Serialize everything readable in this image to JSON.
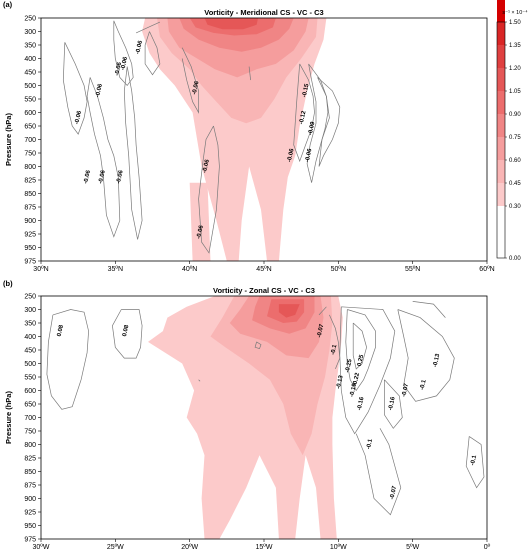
{
  "chart_data": [
    {
      "type": "heatmap",
      "panel_label": "(a)",
      "title": "Vorticity - Meridional CS - VC - C3",
      "ylabel": "Pressure (hPa)",
      "xlabel": "",
      "x_ticks": [
        "30ºN",
        "35ºN",
        "40ºN",
        "45ºN",
        "50ºN",
        "55ºN",
        "60ºN"
      ],
      "xlim": [
        30,
        60
      ],
      "y_ticks": [
        "250",
        "300",
        "350",
        "400",
        "450",
        "500",
        "550",
        "600",
        "650",
        "700",
        "750",
        "800",
        "825",
        "850",
        "875",
        "900",
        "925",
        "950",
        "975"
      ],
      "ylim": [
        975,
        250
      ],
      "contour_labels": [
        {
          "text": "-0.06",
          "x": 36.7,
          "y": 360
        },
        {
          "text": "-0.06",
          "x": 35.7,
          "y": 420
        },
        {
          "text": "-0.06",
          "x": 35.3,
          "y": 440
        },
        {
          "text": "-0.06",
          "x": 34.0,
          "y": 520
        },
        {
          "text": "-0.06",
          "x": 32.6,
          "y": 620
        },
        {
          "text": "-0.06",
          "x": 33.2,
          "y": 820
        },
        {
          "text": "-0.06",
          "x": 34.2,
          "y": 820
        },
        {
          "text": "-0.06",
          "x": 35.4,
          "y": 820
        },
        {
          "text": "-0.06",
          "x": 40.5,
          "y": 510
        },
        {
          "text": "-0.06",
          "x": 41.2,
          "y": 800
        },
        {
          "text": "-0.06",
          "x": 40.8,
          "y": 922
        },
        {
          "text": "-0.15",
          "x": 47.9,
          "y": 520
        },
        {
          "text": "-0.12",
          "x": 47.7,
          "y": 620
        },
        {
          "text": "-0.09",
          "x": 48.3,
          "y": 660
        },
        {
          "text": "-0.06",
          "x": 48.1,
          "y": 760
        },
        {
          "text": "-0.06",
          "x": 46.9,
          "y": 760
        }
      ]
    },
    {
      "type": "heatmap",
      "panel_label": "(b)",
      "title": "Vorticity - Zonal CS - VC - C3",
      "ylabel": "Pressure (hPa)",
      "xlabel": "",
      "x_ticks": [
        "30ºW",
        "25ºW",
        "20ºW",
        "15ºW",
        "10ºW",
        "5ºW",
        "0º"
      ],
      "xlim": [
        -30,
        0
      ],
      "y_ticks": [
        "250",
        "300",
        "350",
        "400",
        "450",
        "500",
        "550",
        "600",
        "650",
        "700",
        "750",
        "800",
        "825",
        "850",
        "875",
        "900",
        "925",
        "950",
        "975"
      ],
      "ylim": [
        975,
        250
      ],
      "contour_labels": [
        {
          "text": "0.08",
          "x": -28.6,
          "y": 380
        },
        {
          "text": "0.08",
          "x": -24.2,
          "y": 380
        },
        {
          "text": "-0.07",
          "x": -11.1,
          "y": 380
        },
        {
          "text": "-0.1",
          "x": -10.2,
          "y": 450
        },
        {
          "text": "-0.25",
          "x": -9.2,
          "y": 510
        },
        {
          "text": "0.25",
          "x": -8.4,
          "y": 490
        },
        {
          "text": "-0.22",
          "x": -8.7,
          "y": 560
        },
        {
          "text": "-0.13",
          "x": -9.8,
          "y": 570
        },
        {
          "text": "-0.19",
          "x": -8.9,
          "y": 600
        },
        {
          "text": "-0.16",
          "x": -8.4,
          "y": 650
        },
        {
          "text": "-0.13",
          "x": -3.3,
          "y": 490
        },
        {
          "text": "-0.1",
          "x": -4.2,
          "y": 580
        },
        {
          "text": "-0.07",
          "x": -5.4,
          "y": 600
        },
        {
          "text": "-0.16",
          "x": -6.3,
          "y": 650
        },
        {
          "text": "-0.1",
          "x": -7.8,
          "y": 800
        },
        {
          "text": "-0.07",
          "x": -6.2,
          "y": 890
        },
        {
          "text": "-0.1",
          "x": -0.8,
          "y": 830
        }
      ]
    }
  ],
  "colorbar": {
    "unit": "s⁻¹ × 10⁻⁴",
    "ticks": [
      "1.50",
      "1.35",
      "1.20",
      "1.05",
      "0.90",
      "0.75",
      "0.60",
      "0.45",
      "0.30",
      "0.00"
    ]
  },
  "colors": {
    "c030": "#fccaca",
    "c045": "#f9b5b5",
    "c060": "#f59d9d",
    "c075": "#f08585",
    "c090": "#ec6d6d",
    "c105": "#e55757",
    "c120": "#df4040",
    "c135": "#d92626",
    "c150": "#d40000",
    "contour": "#7a7a7a"
  }
}
